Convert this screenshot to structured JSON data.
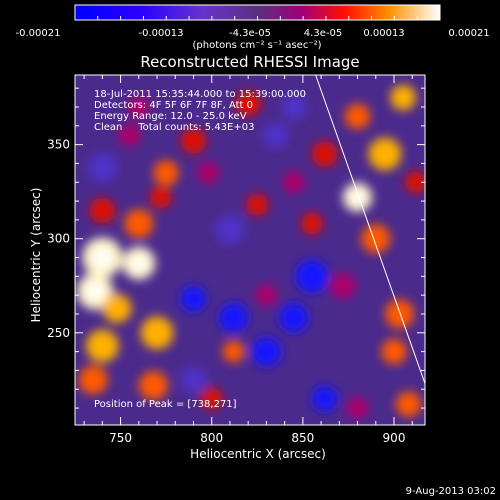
{
  "chart_data": {
    "type": "heatmap",
    "title": "Reconstructed RHESSI Image",
    "xlabel": "Heliocentric X (arcsec)",
    "ylabel": "Heliocentric Y (arcsec)",
    "xlim": [
      725,
      917
    ],
    "ylim": [
      201,
      387
    ],
    "xticks": [
      750,
      800,
      850,
      900
    ],
    "yticks": [
      250,
      300,
      350
    ],
    "colorbar": {
      "min": -0.00021,
      "max": 0.00021,
      "tick_labels": [
        "-0.00021",
        "-0.00013",
        "-4.3e-05",
        "4.3e-05",
        "0.00013",
        "0.00021"
      ],
      "unit_label": "(photons cm⁻² s⁻¹ asec⁻²)"
    },
    "annotations": [
      "18-Jul-2011 15:35:44.000 to 15:39:00.000",
      "Detectors: 4F 5F 6F 7F 8F, Att 0",
      "Energy Range: 12.0 - 25.0 keV",
      "Clean     Total counts: 5.43E+03"
    ],
    "peak_label": "Position of Peak = [738,271]",
    "peak": [
      738,
      271
    ],
    "limb_line": {
      "x": [
        857,
        917
      ],
      "y": [
        387,
        223
      ]
    },
    "blobs": [
      {
        "x": 740,
        "y": 290,
        "v": 1.0,
        "r": 11
      },
      {
        "x": 736,
        "y": 272,
        "v": 0.95,
        "r": 10
      },
      {
        "x": 760,
        "y": 287,
        "v": 0.85,
        "r": 9
      },
      {
        "x": 748,
        "y": 263,
        "v": 0.75,
        "r": 8
      },
      {
        "x": 770,
        "y": 250,
        "v": 0.7,
        "r": 9
      },
      {
        "x": 740,
        "y": 243,
        "v": 0.75,
        "r": 9
      },
      {
        "x": 735,
        "y": 225,
        "v": 0.6,
        "r": 8
      },
      {
        "x": 768,
        "y": 222,
        "v": 0.55,
        "r": 8
      },
      {
        "x": 760,
        "y": 308,
        "v": 0.55,
        "r": 8
      },
      {
        "x": 740,
        "y": 315,
        "v": 0.45,
        "r": 7
      },
      {
        "x": 775,
        "y": 335,
        "v": 0.55,
        "r": 7
      },
      {
        "x": 772,
        "y": 322,
        "v": 0.45,
        "r": 6
      },
      {
        "x": 790,
        "y": 352,
        "v": 0.5,
        "r": 7
      },
      {
        "x": 820,
        "y": 372,
        "v": 0.45,
        "r": 7
      },
      {
        "x": 755,
        "y": 355,
        "v": 0.4,
        "r": 6
      },
      {
        "x": 798,
        "y": 335,
        "v": 0.35,
        "r": 6
      },
      {
        "x": 825,
        "y": 318,
        "v": 0.45,
        "r": 6
      },
      {
        "x": 845,
        "y": 330,
        "v": 0.4,
        "r": 6
      },
      {
        "x": 862,
        "y": 345,
        "v": 0.5,
        "r": 7
      },
      {
        "x": 855,
        "y": 308,
        "v": 0.45,
        "r": 6
      },
      {
        "x": 830,
        "y": 270,
        "v": 0.35,
        "r": 6
      },
      {
        "x": 812,
        "y": 240,
        "v": 0.55,
        "r": 6
      },
      {
        "x": 800,
        "y": 215,
        "v": 0.45,
        "r": 6
      },
      {
        "x": 872,
        "y": 275,
        "v": 0.4,
        "r": 7
      },
      {
        "x": 890,
        "y": 300,
        "v": 0.65,
        "r": 8
      },
      {
        "x": 880,
        "y": 322,
        "v": 0.95,
        "r": 8
      },
      {
        "x": 895,
        "y": 345,
        "v": 0.75,
        "r": 9
      },
      {
        "x": 880,
        "y": 365,
        "v": 0.6,
        "r": 7
      },
      {
        "x": 905,
        "y": 375,
        "v": 0.7,
        "r": 7
      },
      {
        "x": 912,
        "y": 330,
        "v": 0.5,
        "r": 6
      },
      {
        "x": 903,
        "y": 260,
        "v": 0.65,
        "r": 8
      },
      {
        "x": 900,
        "y": 240,
        "v": 0.55,
        "r": 7
      },
      {
        "x": 908,
        "y": 212,
        "v": 0.6,
        "r": 7
      },
      {
        "x": 880,
        "y": 210,
        "v": 0.4,
        "r": 6
      },
      {
        "x": 760,
        "y": 370,
        "v": 0.4,
        "r": 6
      },
      {
        "x": 740,
        "y": 338,
        "v": -0.35,
        "r": 8
      },
      {
        "x": 855,
        "y": 280,
        "v": -0.7,
        "r": 9
      },
      {
        "x": 845,
        "y": 258,
        "v": -0.55,
        "r": 8
      },
      {
        "x": 830,
        "y": 240,
        "v": -0.5,
        "r": 8
      },
      {
        "x": 812,
        "y": 258,
        "v": -0.55,
        "r": 8
      },
      {
        "x": 790,
        "y": 268,
        "v": -0.45,
        "r": 7
      },
      {
        "x": 835,
        "y": 355,
        "v": -0.35,
        "r": 7
      },
      {
        "x": 810,
        "y": 305,
        "v": -0.3,
        "r": 8
      },
      {
        "x": 790,
        "y": 225,
        "v": -0.35,
        "r": 7
      },
      {
        "x": 862,
        "y": 215,
        "v": -0.4,
        "r": 7
      },
      {
        "x": 845,
        "y": 370,
        "v": -0.3,
        "r": 7
      }
    ]
  },
  "footer": {
    "date": "9-Aug-2013 03:02"
  }
}
